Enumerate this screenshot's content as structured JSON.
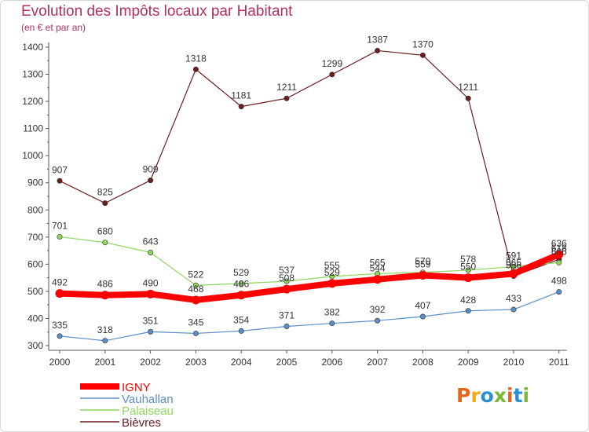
{
  "header": {
    "title": "Evolution des Impôts locaux par Habitant",
    "subtitle": "(en € et par an)"
  },
  "logo": {
    "text": "Proxiti",
    "colors": [
      "#e8641b",
      "#f3a81c",
      "#2c8fd6",
      "#7ab83a",
      "#e8641b",
      "#2c8fd6",
      "#7ab83a"
    ]
  },
  "chart_data": {
    "type": "line",
    "title": "Evolution des Impôts locaux par Habitant",
    "subtitle": "(en € et par an)",
    "xlabel": "",
    "ylabel": "",
    "categories": [
      "2000",
      "2001",
      "2002",
      "2003",
      "2004",
      "2005",
      "2006",
      "2007",
      "2008",
      "2009",
      "2010",
      "2011"
    ],
    "ylim": [
      300,
      1400
    ],
    "yticks": [
      "300",
      "400",
      "500",
      "600",
      "700",
      "800",
      "900",
      "1000",
      "1100",
      "1200",
      "1300",
      "1400"
    ],
    "grid": false,
    "legend_position": "bottom-left",
    "series": [
      {
        "name": "Bièvres",
        "color": "#6b1e1e",
        "values": [
          907,
          825,
          909,
          1318,
          1181,
          1211,
          1299,
          1387,
          1370,
          1211,
          556,
          618
        ]
      },
      {
        "name": "Palaiseau",
        "color": "#8ed65e",
        "values": [
          701,
          680,
          643,
          522,
          529,
          537,
          555,
          565,
          570,
          578,
          591,
          606
        ]
      },
      {
        "name": "Vauhallan",
        "color": "#5b8fc7",
        "values": [
          335,
          318,
          351,
          345,
          354,
          371,
          382,
          392,
          407,
          428,
          433,
          498
        ]
      },
      {
        "name": "IGNY",
        "color": "#ff0000",
        "values": [
          492,
          486,
          490,
          468,
          486,
          508,
          529,
          544,
          559,
          550,
          565,
          636
        ]
      }
    ],
    "labels": [
      {
        "series": "Bièvres",
        "values": [
          "907",
          "825",
          "909",
          "1318",
          "1181",
          "1211",
          "1299",
          "1387",
          "1370",
          "1211",
          "556",
          "618"
        ]
      },
      {
        "series": "Palaiseau",
        "values": [
          "701",
          "680",
          "643",
          "522",
          "529",
          "537",
          "555",
          "565",
          "570",
          "578",
          "591",
          "606"
        ]
      },
      {
        "series": "Vauhallan",
        "values": [
          "335",
          "318",
          "351",
          "345",
          "354",
          "371",
          "382",
          "392",
          "407",
          "428",
          "433",
          "498"
        ]
      },
      {
        "series": "IGNY",
        "values": [
          "492",
          "486",
          "490",
          "468",
          "486",
          "508",
          "529",
          "544",
          "559",
          "550",
          "565",
          "636"
        ]
      }
    ]
  },
  "legend": [
    {
      "name": "IGNY",
      "color": "#ff0000",
      "thick": true
    },
    {
      "name": "Vauhallan",
      "color": "#5b8fc7",
      "thick": false
    },
    {
      "name": "Palaiseau",
      "color": "#8ed65e",
      "thick": false
    },
    {
      "name": "Bièvres",
      "color": "#6b1e1e",
      "thick": false
    }
  ]
}
